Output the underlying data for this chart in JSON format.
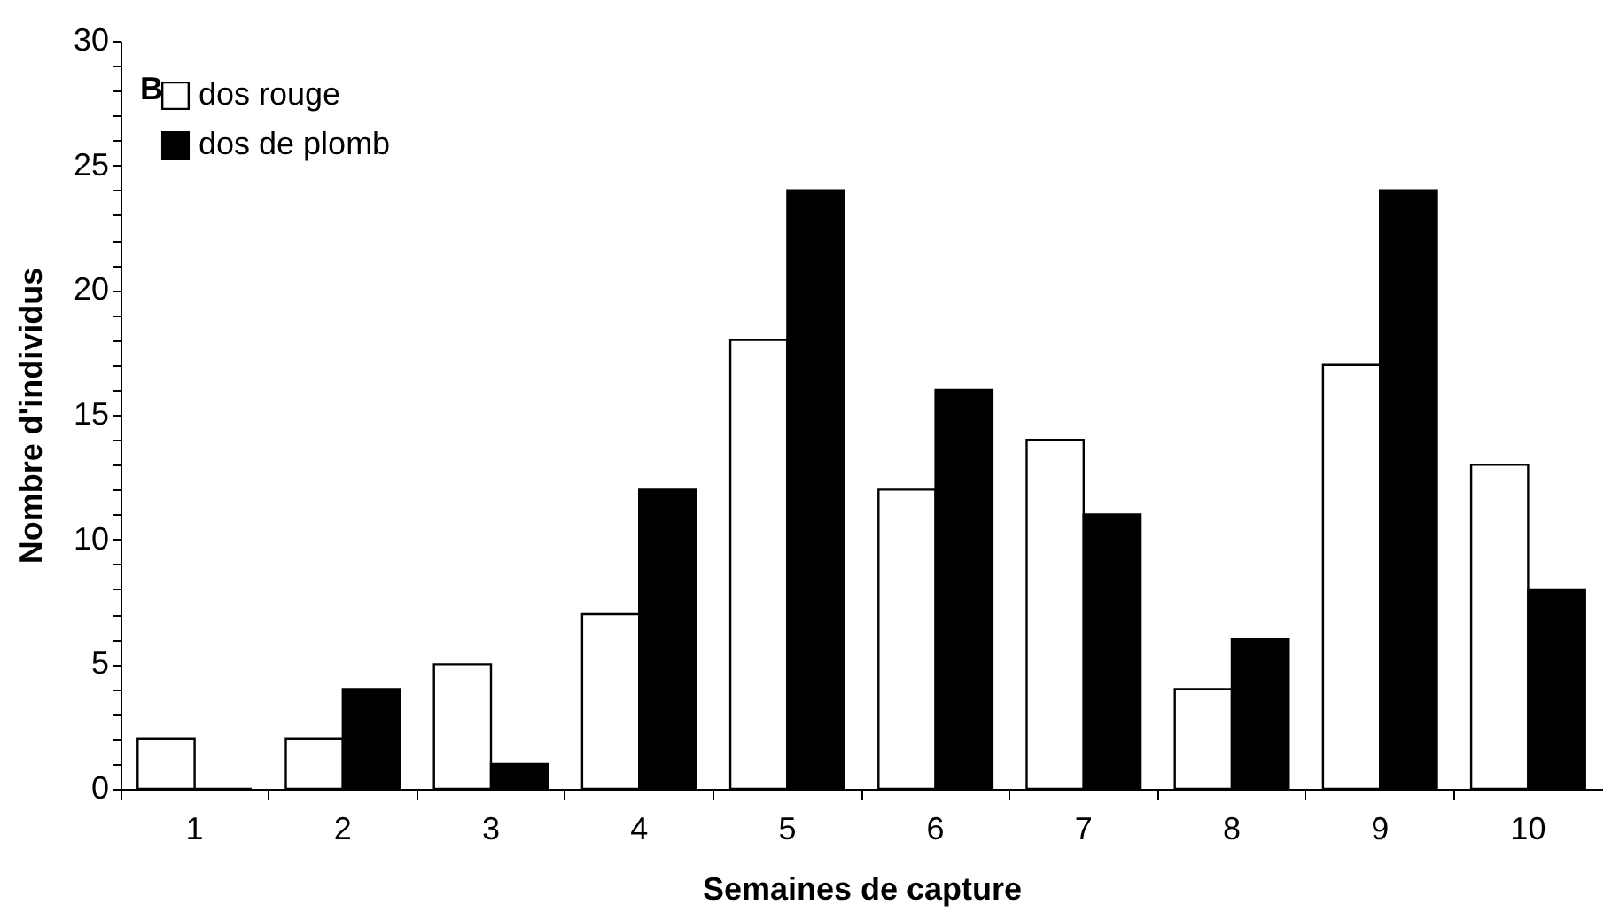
{
  "chart_data": {
    "type": "bar",
    "title": "B",
    "xlabel": "Semaines de capture",
    "ylabel": "Nombre d'individus",
    "categories": [
      "1",
      "2",
      "3",
      "4",
      "5",
      "6",
      "7",
      "8",
      "9",
      "10"
    ],
    "series": [
      {
        "name": "dos rouge",
        "color": "#ffffff",
        "values": [
          2,
          2,
          5,
          7,
          18,
          12,
          14,
          4,
          17,
          13
        ]
      },
      {
        "name": "dos de plomb",
        "color": "#000000",
        "values": [
          0,
          4,
          1,
          12,
          24,
          16,
          11,
          6,
          24,
          8
        ]
      }
    ],
    "ylim": [
      0,
      30
    ],
    "yticks": [
      0,
      {
        "value": 1,
        "label": null
      },
      {
        "value": 2,
        "label": null
      },
      {
        "value": 3,
        "label": null
      },
      {
        "value": 4,
        "label": null
      },
      5,
      {
        "value": 6,
        "label": null
      },
      {
        "value": 7,
        "label": null
      },
      {
        "value": 8,
        "label": null
      },
      {
        "value": 9,
        "label": null
      },
      10,
      {
        "value": 11,
        "label": null
      },
      {
        "value": 12,
        "label": null
      },
      {
        "value": 13,
        "label": null
      },
      {
        "value": 14,
        "label": null
      },
      15,
      {
        "value": 16,
        "label": null
      },
      {
        "value": 17,
        "label": null
      },
      {
        "value": 18,
        "label": null
      },
      {
        "value": 19,
        "label": null
      },
      20,
      {
        "value": 21,
        "label": null
      },
      {
        "value": 22,
        "label": null
      },
      {
        "value": 23,
        "label": null
      },
      {
        "value": 24,
        "label": null
      },
      25,
      {
        "value": 26,
        "label": null
      },
      {
        "value": 27,
        "label": null
      },
      {
        "value": 28,
        "label": null
      },
      {
        "value": 29,
        "label": null
      },
      30
    ],
    "grid": false,
    "legend": "top left"
  }
}
